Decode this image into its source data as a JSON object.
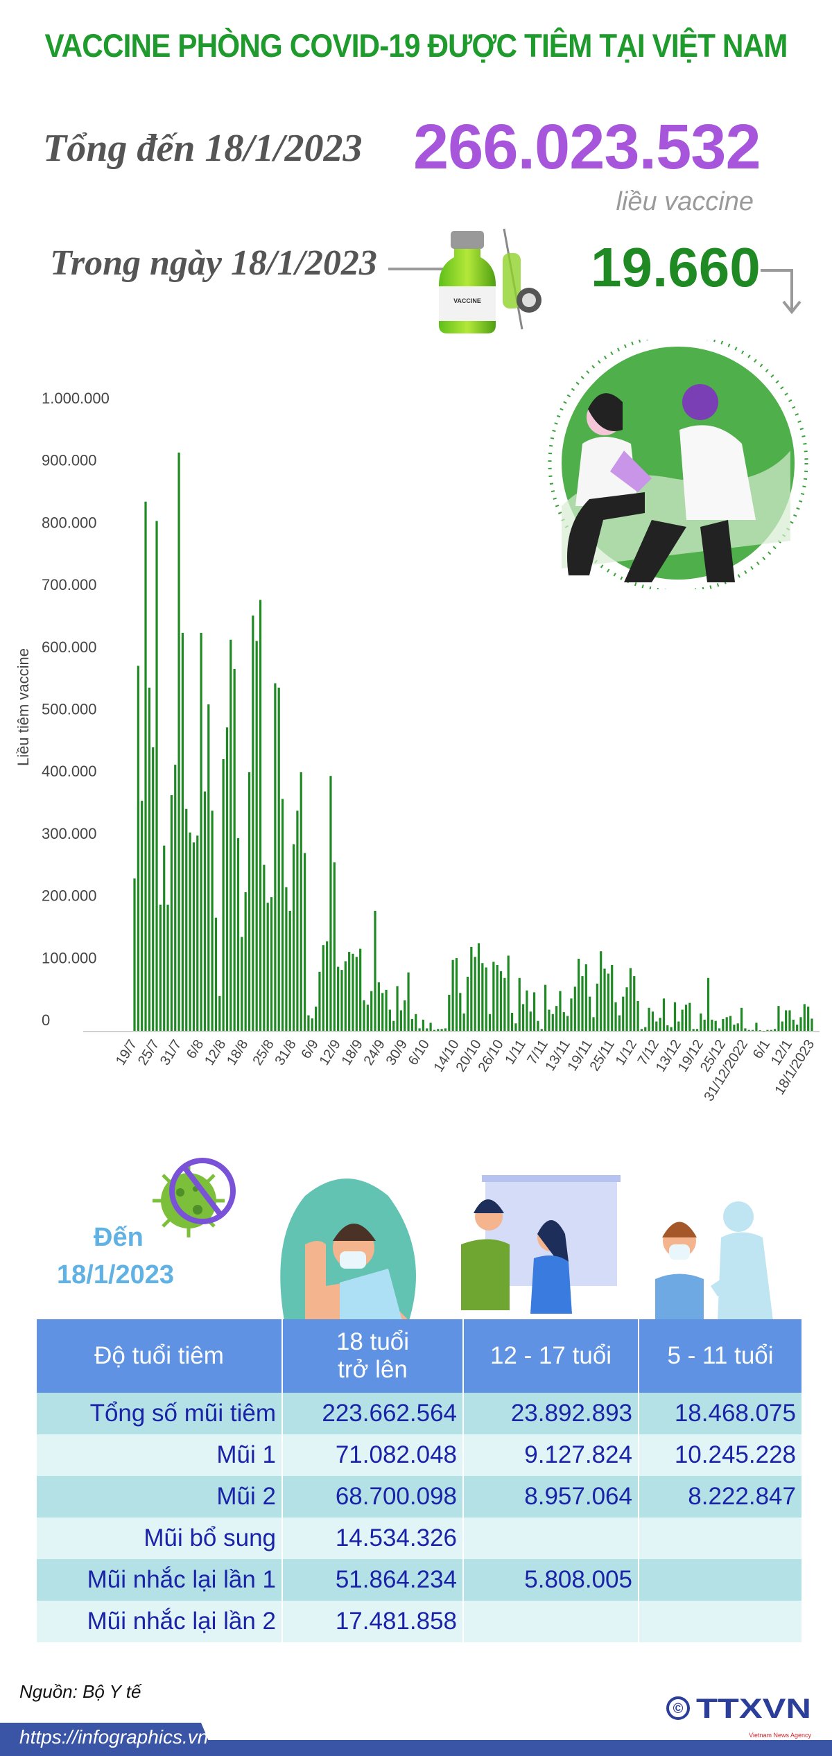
{
  "header": {
    "title": "VACCINE PHÒNG COVID-19 ĐƯỢC TIÊM TẠI VIỆT NAM",
    "total_label": "Tổng đến 18/1/2023",
    "total_value": "266.023.532",
    "total_unit": "liều vaccine",
    "day_label": "Trong ngày 18/1/2023",
    "day_value": "19.660",
    "day_trend_icon": "arrow-down-icon",
    "vial_label": "VACCINE"
  },
  "colors": {
    "title": "#1f9a2c",
    "total": "#a756dc",
    "day": "#1f8a23",
    "bar": "#1f8a23",
    "table_header": "#5f92e2",
    "table_text": "#1a23a8",
    "footer": "#3a55a5"
  },
  "chart_data": {
    "type": "bar",
    "ylabel": "Liều tiêm vaccine",
    "xlabel": "",
    "ylim": [
      0,
      1000000
    ],
    "yticks": [
      "0",
      "100.000",
      "200.000",
      "300.000",
      "400.000",
      "500.000",
      "600.000",
      "700.000",
      "800.000",
      "900.000",
      "1.000.000"
    ],
    "ytick_values": [
      0,
      100000,
      200000,
      300000,
      400000,
      500000,
      600000,
      700000,
      800000,
      900000,
      1000000
    ],
    "grid": false,
    "tick_labels": [
      "19/7",
      "25/7",
      "31/7",
      "6/8",
      "12/8",
      "18/8",
      "25/8",
      "31/8",
      "6/9",
      "12/9",
      "18/9",
      "24/9",
      "30/9",
      "6/10",
      "14/10",
      "20/10",
      "26/10",
      "1/11",
      "7/11",
      "13/11",
      "19/11",
      "25/11",
      "1/12",
      "7/12",
      "13/12",
      "19/12",
      "25/12",
      "31/12/2022",
      "6/1",
      "12/1",
      "18/1/2023"
    ],
    "categories": [
      "19/7",
      "20/7",
      "21/7",
      "22/7",
      "23/7",
      "24/7",
      "25/7",
      "26/7",
      "27/7",
      "28/7",
      "29/7",
      "30/7",
      "31/7",
      "1/8",
      "2/8",
      "3/8",
      "4/8",
      "5/8",
      "6/8",
      "7/8",
      "8/8",
      "9/8",
      "10/8",
      "11/8",
      "12/8",
      "13/8",
      "14/8",
      "15/8",
      "16/8",
      "17/8",
      "18/8",
      "19/8",
      "20/8",
      "21/8",
      "22/8",
      "23/8",
      "24/8",
      "25/8",
      "26/8",
      "27/8",
      "28/8",
      "29/8",
      "30/8",
      "31/8",
      "1/9",
      "2/9",
      "3/9",
      "4/9",
      "5/9",
      "6/9",
      "7/9",
      "8/9",
      "9/9",
      "10/9",
      "11/9",
      "12/9",
      "13/9",
      "14/9",
      "15/9",
      "16/9",
      "17/9",
      "18/9",
      "19/9",
      "20/9",
      "21/9",
      "22/9",
      "23/9",
      "24/9",
      "25/9",
      "26/9",
      "27/9",
      "28/9",
      "29/9",
      "30/9",
      "1/10",
      "2/10",
      "3/10",
      "4/10",
      "5/10",
      "6/10",
      "7/10",
      "8/10",
      "9/10",
      "10/10",
      "11/10",
      "12/10",
      "13/10",
      "14/10",
      "15/10",
      "16/10",
      "17/10",
      "18/10",
      "19/10",
      "20/10",
      "21/10",
      "22/10",
      "23/10",
      "24/10",
      "25/10",
      "26/10",
      "27/10",
      "28/10",
      "29/10",
      "30/10",
      "31/10",
      "1/11",
      "2/11",
      "3/11",
      "4/11",
      "5/11",
      "6/11",
      "7/11",
      "8/11",
      "9/11",
      "10/11",
      "11/11",
      "12/11",
      "13/11",
      "14/11",
      "15/11",
      "16/11",
      "17/11",
      "18/11",
      "19/11",
      "20/11",
      "21/11",
      "22/11",
      "23/11",
      "24/11",
      "25/11",
      "26/11",
      "27/11",
      "28/11",
      "29/11",
      "30/11",
      "1/12",
      "2/12",
      "3/12",
      "4/12",
      "5/12",
      "6/12",
      "7/12",
      "8/12",
      "9/12",
      "10/12",
      "11/12",
      "12/12",
      "13/12",
      "14/12",
      "15/12",
      "16/12",
      "17/12",
      "18/12",
      "19/12",
      "20/12",
      "21/12",
      "22/12",
      "23/12",
      "24/12",
      "25/12",
      "26/12",
      "27/12",
      "28/12",
      "29/12",
      "30/12",
      "31/12",
      "1/1",
      "2/1",
      "3/1",
      "4/1",
      "5/1",
      "6/1",
      "7/1",
      "8/1",
      "9/1",
      "10/1",
      "11/1",
      "12/1",
      "13/1",
      "14/1",
      "15/1",
      "16/1",
      "17/1",
      "18/1"
    ],
    "values": [
      245000,
      587000,
      370000,
      851000,
      552000,
      456000,
      820000,
      203000,
      298000,
      203000,
      379000,
      428000,
      930000,
      640000,
      357000,
      319000,
      303000,
      314000,
      640000,
      385000,
      525000,
      354000,
      182000,
      56000,
      437000,
      488000,
      629000,
      582000,
      310000,
      151000,
      223000,
      416000,
      668000,
      627000,
      693000,
      267000,
      206000,
      215000,
      559000,
      552000,
      373000,
      231000,
      193000,
      300000,
      354000,
      416000,
      286000,
      25000,
      20000,
      39000,
      95000,
      138000,
      144000,
      410000,
      271000,
      103000,
      98000,
      112000,
      127000,
      124000,
      119000,
      132000,
      49000,
      42000,
      64000,
      193000,
      78000,
      61000,
      66000,
      34000,
      16000,
      72000,
      33000,
      49000,
      94000,
      19000,
      27000,
      4000,
      18000,
      4000,
      13000,
      1500,
      3000,
      3000,
      4000,
      58000,
      114000,
      117000,
      61000,
      28000,
      87000,
      135000,
      119000,
      141000,
      109000,
      102000,
      27000,
      111000,
      106000,
      96000,
      85000,
      121000,
      29000,
      12000,
      85000,
      43000,
      65000,
      31000,
      62000,
      16000,
      3000,
      74000,
      34000,
      27000,
      40000,
      64000,
      30000,
      24000,
      52000,
      71000,
      116000,
      88000,
      107000,
      55000,
      22000,
      76000,
      128000,
      100000,
      92000,
      106000,
      46000,
      25000,
      55000,
      70000,
      101000,
      88000,
      48000,
      3000,
      6000,
      37000,
      31000,
      15000,
      21000,
      52000,
      9000,
      6000,
      46000,
      15000,
      34000,
      42000,
      45000,
      3000,
      3000,
      28000,
      18000,
      85000,
      18000,
      16000,
      4000,
      19000,
      22000,
      24000,
      10000,
      12000,
      37000,
      4000,
      1500,
      1500,
      13000,
      1000,
      0,
      1500,
      1500,
      3000,
      40000,
      15000,
      33000,
      33000,
      18000,
      10000,
      22000,
      43000,
      39000,
      19660
    ]
  },
  "summary": {
    "den_label": "Đến",
    "den_date": "18/1/2023"
  },
  "table": {
    "headers": [
      "Độ tuổi tiêm",
      "18 tuổi\ntrở lên",
      "12 - 17 tuổi",
      "5 - 11 tuổi"
    ],
    "header_18_line1": "18 tuổi",
    "header_18_line2": "trở lên",
    "rows": [
      [
        "Tổng số mũi tiêm",
        "223.662.564",
        "23.892.893",
        "18.468.075"
      ],
      [
        "Mũi 1",
        "71.082.048",
        "9.127.824",
        "10.245.228"
      ],
      [
        "Mũi 2",
        "68.700.098",
        "8.957.064",
        "8.222.847"
      ],
      [
        "Mũi bổ sung",
        "14.534.326",
        "",
        ""
      ],
      [
        "Mũi nhắc lại lần 1",
        "51.864.234",
        "5.808.005",
        ""
      ],
      [
        "Mũi nhắc lại lần 2",
        "17.481.858",
        "",
        ""
      ]
    ]
  },
  "footer": {
    "source": "Nguồn: Bộ Y tế",
    "url": "https://infographics.vn",
    "logo_text": "TTXVN",
    "logo_subtext": "Vietnam News Agency",
    "copyright_symbol": "©"
  }
}
